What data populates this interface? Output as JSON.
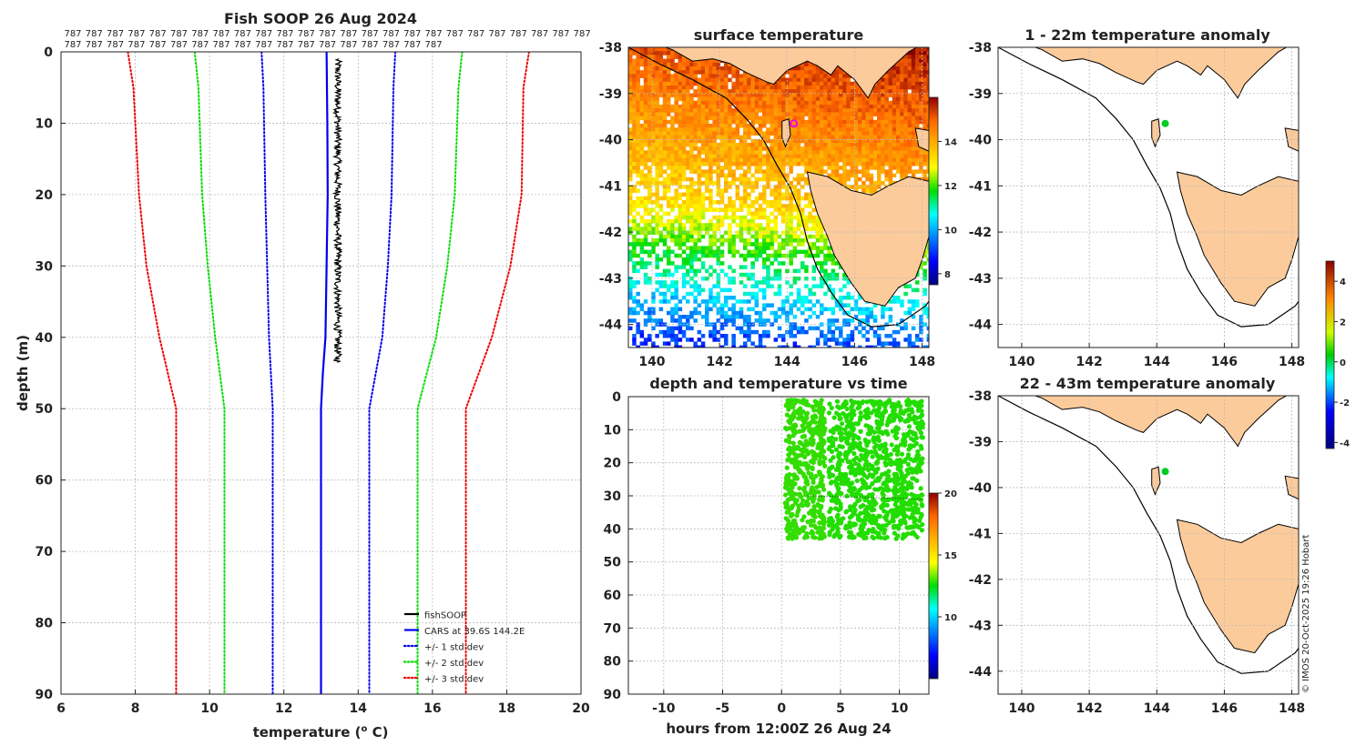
{
  "chart_data": [
    {
      "type": "line",
      "title": "Fish SOOP 26 Aug 2024",
      "xlabel": "temperature (",
      "xlabel_sup": "o",
      "xlabel_tail": " C)",
      "ylabel": "depth (m)",
      "xlim": [
        6,
        20
      ],
      "ylim": [
        90,
        0
      ],
      "xticks": [
        6,
        8,
        10,
        12,
        14,
        16,
        18,
        20
      ],
      "yticks": [
        0,
        10,
        20,
        30,
        40,
        50,
        60,
        70,
        80,
        90
      ],
      "count_label": "787",
      "count_row1": 25,
      "count_row2": 18,
      "series": [
        {
          "name": "fishSOOP",
          "color": "#000000",
          "style": "solid",
          "depth_range": [
            1,
            43.5
          ],
          "temp_range": [
            13.35,
            13.55
          ]
        },
        {
          "name": "CARS at 39.6S 144.2E",
          "color": "#0000ee",
          "style": "solid",
          "depth": [
            0,
            10,
            20,
            30,
            40,
            45,
            50,
            60,
            70,
            80,
            90
          ],
          "temp": [
            13.15,
            13.17,
            13.18,
            13.15,
            13.12,
            13.05,
            13.0,
            13.0,
            13.0,
            13.0,
            13.0
          ]
        },
        {
          "name": "+/- 1 std dev",
          "color": "#0000ee",
          "style": "dotted",
          "lower": {
            "depth": [
              0,
              5,
              20,
              30,
              40,
              50,
              90
            ],
            "temp": [
              11.4,
              11.45,
              11.5,
              11.55,
              11.6,
              11.7,
              11.7
            ]
          },
          "upper": {
            "depth": [
              0,
              5,
              20,
              30,
              40,
              50,
              90
            ],
            "temp": [
              15.0,
              14.95,
              14.9,
              14.8,
              14.65,
              14.3,
              14.3
            ]
          }
        },
        {
          "name": "+/- 2 std dev",
          "color": "#00dd00",
          "style": "dotted",
          "lower": {
            "depth": [
              0,
              5,
              20,
              30,
              40,
              50,
              90
            ],
            "temp": [
              9.6,
              9.7,
              9.8,
              9.95,
              10.15,
              10.4,
              10.4
            ]
          },
          "upper": {
            "depth": [
              0,
              5,
              20,
              30,
              40,
              50,
              90
            ],
            "temp": [
              16.8,
              16.7,
              16.6,
              16.4,
              16.1,
              15.6,
              15.6
            ]
          }
        },
        {
          "name": "+/- 3 std dev",
          "color": "#ee0000",
          "style": "dotted",
          "lower": {
            "depth": [
              0,
              5,
              20,
              30,
              40,
              50,
              90
            ],
            "temp": [
              7.8,
              7.95,
              8.1,
              8.3,
              8.65,
              9.1,
              9.1
            ]
          },
          "upper": {
            "depth": [
              0,
              5,
              20,
              30,
              40,
              50,
              90
            ],
            "temp": [
              18.6,
              18.45,
              18.4,
              18.1,
              17.6,
              16.9,
              16.9
            ]
          }
        }
      ],
      "legend": [
        "fishSOOP",
        "CARS at 39.6S 144.2E",
        "+/- 1 std dev",
        "+/- 2 std dev",
        "+/- 3 std dev"
      ],
      "legend_position": "bottom-right"
    },
    {
      "type": "heatmap",
      "title": "surface temperature",
      "xticks": [
        140,
        142,
        144,
        146,
        148
      ],
      "yticks": [
        -38,
        -39,
        -40,
        -41,
        -42,
        -43,
        -44
      ],
      "xlim": [
        139.3,
        148.2
      ],
      "ylim": [
        -44.5,
        -38
      ],
      "colorbar": {
        "ticks": [
          8,
          10,
          12,
          14
        ],
        "range": [
          7.5,
          16
        ]
      },
      "marker": {
        "lon": 144.2,
        "lat": -39.65,
        "color": "#ee00ee"
      }
    },
    {
      "type": "scatter",
      "title": "depth and temperature vs time",
      "xlabel": "hours from 12:00Z 26 Aug 24",
      "xticks": [
        -10,
        -5,
        0,
        5,
        10
      ],
      "yticks": [
        0,
        10,
        20,
        30,
        40,
        50,
        60,
        70,
        80,
        90
      ],
      "xlim": [
        -13,
        12.5
      ],
      "ylim": [
        90,
        0
      ],
      "time_range": [
        0.3,
        12
      ],
      "depth_range": [
        1,
        43
      ],
      "point_color": "#22dd00",
      "colorbar": {
        "ticks": [
          10,
          15,
          20
        ],
        "range": [
          5,
          20
        ]
      }
    },
    {
      "type": "heatmap",
      "title": "1 - 22m temperature anomaly",
      "xticks": [
        140,
        142,
        144,
        146,
        148
      ],
      "yticks": [
        -38,
        -39,
        -40,
        -41,
        -42,
        -43,
        -44
      ],
      "xlim": [
        139.3,
        148.2
      ],
      "ylim": [
        -44.5,
        -38
      ],
      "marker": {
        "lon": 144.25,
        "lat": -39.65,
        "color": "#00cc22"
      }
    },
    {
      "type": "heatmap",
      "title": "22 - 43m temperature anomaly",
      "xticks": [
        140,
        142,
        144,
        146,
        148
      ],
      "yticks": [
        -38,
        -39,
        -40,
        -41,
        -42,
        -43,
        -44
      ],
      "xlim": [
        139.3,
        148.2
      ],
      "ylim": [
        -44.5,
        -38
      ],
      "marker": {
        "lon": 144.25,
        "lat": -39.65,
        "color": "#00cc22"
      }
    }
  ],
  "anomaly_colorbar": {
    "ticks": [
      4,
      2,
      0,
      -2,
      -4
    ],
    "range": [
      -4.3,
      5
    ]
  },
  "credit": "© IMOS 20-Oct-2025 19:26 Hobart",
  "colors": {
    "land": "#fccb9b",
    "coast": "#000000"
  }
}
